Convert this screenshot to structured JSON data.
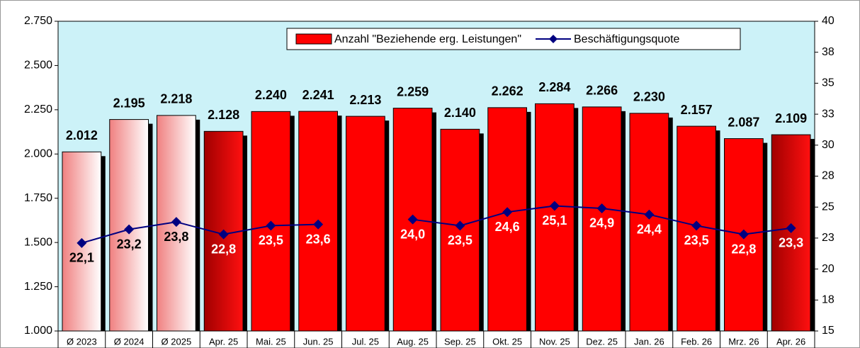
{
  "chart_data": {
    "type": "bar+line",
    "categories": [
      "Ø 2023",
      "Ø 2024",
      "Ø 2025",
      "Apr. 25",
      "Mai. 25",
      "Jun. 25",
      "Jul. 25",
      "Aug. 25",
      "Sep. 25",
      "Okt. 25",
      "Nov. 25",
      "Dez. 25",
      "Jan. 26",
      "Feb. 26",
      "Mrz. 26",
      "Apr. 26"
    ],
    "series": [
      {
        "name": "Anzahl \"Beziehende erg. Leistungen\"",
        "type": "bar",
        "color": "#ff0000",
        "colors": [
          [
            "#f08080",
            "#ffffff"
          ],
          [
            "#f08080",
            "#ffffff"
          ],
          [
            "#f08080",
            "#ffffff"
          ],
          [
            "#a00000",
            "#ff1010"
          ],
          [
            "#ff0000",
            "#ff0000"
          ],
          [
            "#ff0000",
            "#ff0000"
          ],
          [
            "#ff0000",
            "#ff0000"
          ],
          [
            "#ff0000",
            "#ff0000"
          ],
          [
            "#ff0000",
            "#ff0000"
          ],
          [
            "#ff0000",
            "#ff0000"
          ],
          [
            "#ff0000",
            "#ff0000"
          ],
          [
            "#ff0000",
            "#ff0000"
          ],
          [
            "#ff0000",
            "#ff0000"
          ],
          [
            "#ff0000",
            "#ff0000"
          ],
          [
            "#ff0000",
            "#ff0000"
          ],
          [
            "#a00000",
            "#ff1010"
          ]
        ],
        "values": [
          2012,
          2195,
          2218,
          2128,
          2240,
          2241,
          2213,
          2259,
          2140,
          2262,
          2284,
          2266,
          2230,
          2157,
          2087,
          2109
        ],
        "value_labels": [
          "2.012",
          "2.195",
          "2.218",
          "2.128",
          "2.240",
          "2.241",
          "2.213",
          "2.259",
          "2.140",
          "2.262",
          "2.284",
          "2.266",
          "2.230",
          "2.157",
          "2.087",
          "2.109"
        ]
      },
      {
        "name": "Beschäftigungsquote",
        "type": "line",
        "axis": "y2",
        "color": "#000080",
        "values": [
          22.1,
          23.2,
          23.8,
          22.8,
          23.5,
          23.6,
          null,
          24.0,
          23.5,
          24.6,
          25.1,
          24.9,
          24.4,
          23.5,
          22.8,
          23.3
        ],
        "value_labels": [
          "22,1",
          "23,2",
          "23,8",
          "22,8",
          "23,5",
          "23,6",
          null,
          "24,0",
          "23,5",
          "24,6",
          "25,1",
          "24,9",
          "24,4",
          "23,5",
          "22,8",
          "23,3"
        ]
      }
    ],
    "ylim": [
      1000,
      2750
    ],
    "yticks": [
      {
        "value": 1000,
        "label": "1.000"
      },
      {
        "value": 1250,
        "label": "1.250"
      },
      {
        "value": 1500,
        "label": "1.500"
      },
      {
        "value": 1750,
        "label": "1.750"
      },
      {
        "value": 2000,
        "label": "2.000"
      },
      {
        "value": 2250,
        "label": "2.250"
      },
      {
        "value": 2500,
        "label": "2.500"
      },
      {
        "value": 2750,
        "label": "2.750"
      }
    ],
    "y2lim": [
      15,
      40
    ],
    "y2ticks": [
      15,
      {
        "value": 17.5,
        "label": "18"
      },
      20,
      {
        "value": 22.5,
        "label": "23"
      },
      25,
      {
        "value": 27.5,
        "label": "28"
      },
      30,
      {
        "value": 32.5,
        "label": "33"
      },
      35,
      {
        "value": 37.5,
        "label": "38"
      },
      40
    ],
    "legend": "top"
  }
}
